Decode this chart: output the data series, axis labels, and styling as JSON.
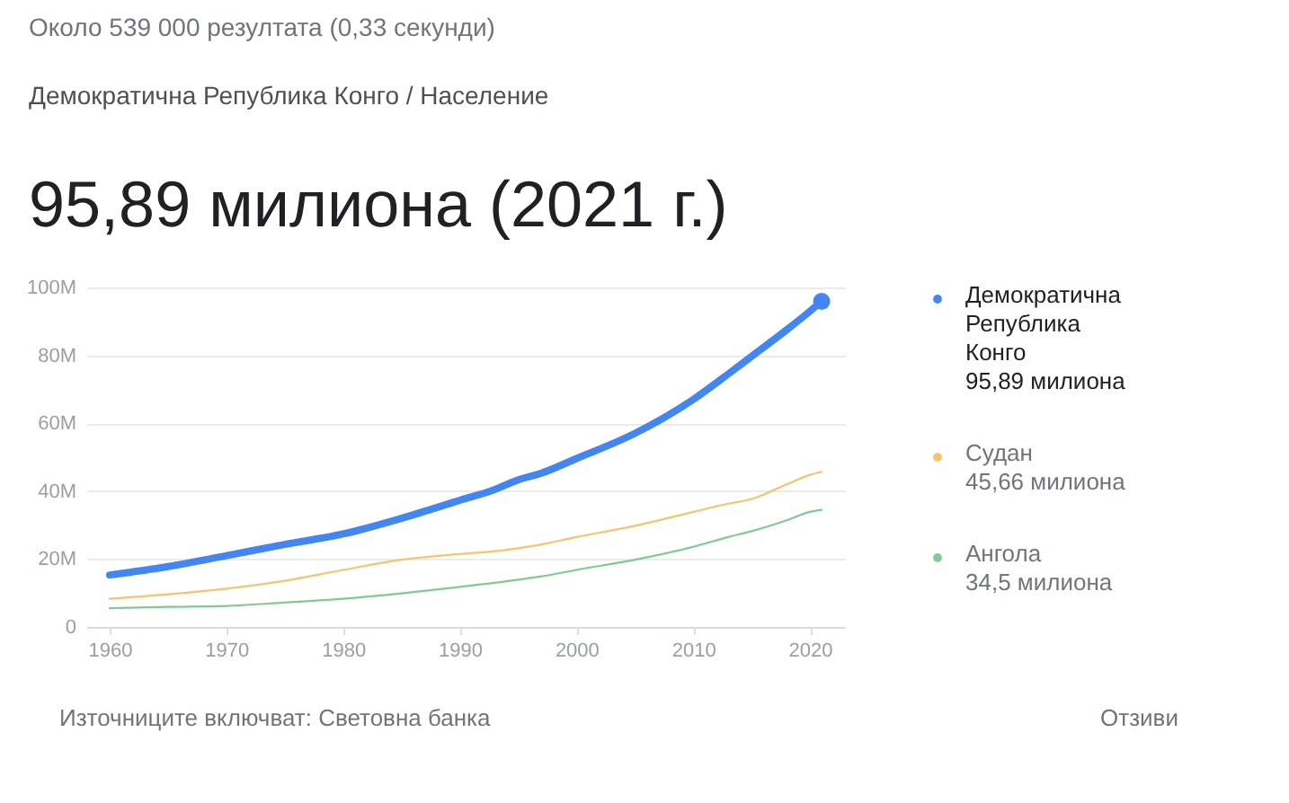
{
  "chart_data": {
    "type": "line",
    "title": "95,89 милиона (2021 г.)",
    "subtitle": "Демократична Република Конго / Население",
    "annotations": [
      "Около 539 000 резултата (0,33 секунди)",
      "95,89 милиона",
      "45,66 милиона",
      "34,5 милиона",
      "Източниците включват: Световна банка",
      "Отзиви"
    ],
    "x": [
      1960,
      1965,
      1970,
      1975,
      1980,
      1985,
      1990,
      1993,
      1995,
      1997,
      2000,
      2005,
      2010,
      2013,
      2015,
      2018,
      2020,
      2021
    ],
    "xlim": [
      1958,
      2023
    ],
    "xticks": [
      1960,
      1970,
      1980,
      1990,
      2000,
      2010,
      2020
    ],
    "ylim": [
      0,
      100
    ],
    "yticks": [
      0,
      {
        "value": 20,
        "label": "20M"
      },
      {
        "value": 40,
        "label": "40M"
      },
      {
        "value": 60,
        "label": "60M"
      },
      {
        "value": 80,
        "label": "80M"
      },
      {
        "value": 100,
        "label": "100M"
      }
    ],
    "grid": "y",
    "legend": "right",
    "series": [
      {
        "name": "Демократична Република Конго",
        "color": "#4285f4",
        "values": [
          15.3,
          17.8,
          21.0,
          24.3,
          27.4,
          32.0,
          37.3,
          40.5,
          43.3,
          45.3,
          49.6,
          57.0,
          67.0,
          74.5,
          79.7,
          87.5,
          93.0,
          95.9
        ]
      },
      {
        "name": "Судан",
        "color": "#f7c46c",
        "values": [
          8.3,
          9.6,
          11.3,
          13.6,
          16.8,
          19.8,
          21.5,
          22.3,
          23.2,
          24.3,
          26.5,
          29.8,
          33.9,
          36.3,
          37.7,
          42.0,
          44.8,
          45.7
        ]
      },
      {
        "name": "Ангола",
        "color": "#81c995",
        "values": [
          5.5,
          5.9,
          6.2,
          7.2,
          8.3,
          9.9,
          11.8,
          13.0,
          13.9,
          14.9,
          16.8,
          19.8,
          23.6,
          26.5,
          28.2,
          31.4,
          33.9,
          34.5
        ]
      },
      {
        "type": "scatter",
        "color": "#4285f4",
        "x": [
          2021
        ],
        "values": [
          95.9
        ]
      }
    ]
  }
}
